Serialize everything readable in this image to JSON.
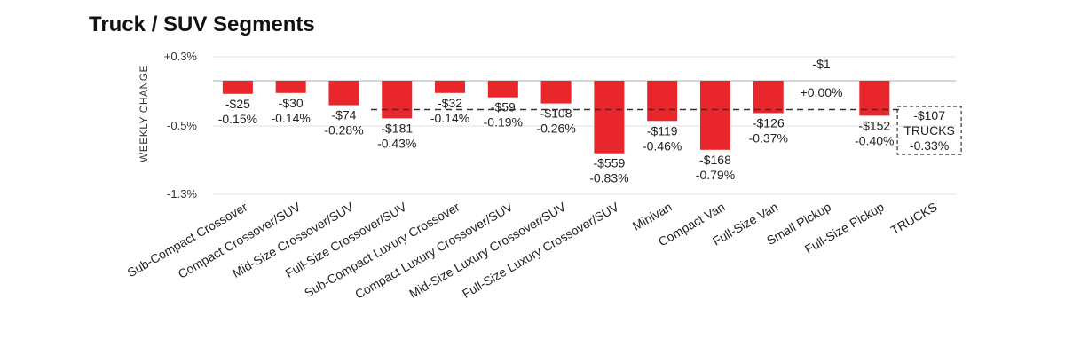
{
  "title": "Truck / SUV Segments",
  "chart_data": {
    "type": "bar",
    "ylabel": "WEEKLY CHANGE",
    "yticks": [
      "+0.3%",
      "-0.5%",
      "-1.3%"
    ],
    "ylim": [
      -1.3,
      0.3
    ],
    "categories": [
      "Sub-Compact Crossover",
      "Compact Crossover/SUV",
      "Mid-Size Crossover/SUV",
      "Full-Size Crossover/SUV",
      "Sub-Compact Luxury Crossover",
      "Compact Luxury Crossover/SUV",
      "Mid-Size Luxury Crossover/SUV",
      "Full-Size Luxury Crossover/SUV",
      "Minivan",
      "Compact Van",
      "Full-Size Van",
      "Small Pickup",
      "Full-Size Pickup",
      "TRUCKS"
    ],
    "values": [
      -0.15,
      -0.14,
      -0.28,
      -0.43,
      -0.14,
      -0.19,
      -0.26,
      -0.83,
      -0.46,
      -0.79,
      -0.37,
      0.0,
      -0.4,
      -0.33
    ],
    "dollar_labels": [
      "-$25",
      "-$30",
      "-$74",
      "-$181",
      "-$32",
      "-$59",
      "-$108",
      "-$559",
      "-$119",
      "-$168",
      "-$126",
      "-$1",
      "-$152",
      "-$107"
    ],
    "pct_labels": [
      "-0.15%",
      "-0.14%",
      "-0.28%",
      "-0.43%",
      "-0.14%",
      "-0.19%",
      "-0.26%",
      "-0.83%",
      "-0.46%",
      "-0.79%",
      "-0.37%",
      "+0.00%",
      "-0.40%",
      "-0.33%"
    ],
    "average": {
      "label": "TRUCKS",
      "value": -0.33,
      "dollar": "-$107",
      "pct": "-0.33%"
    },
    "bar_color": "#e8262b",
    "grid": true
  }
}
